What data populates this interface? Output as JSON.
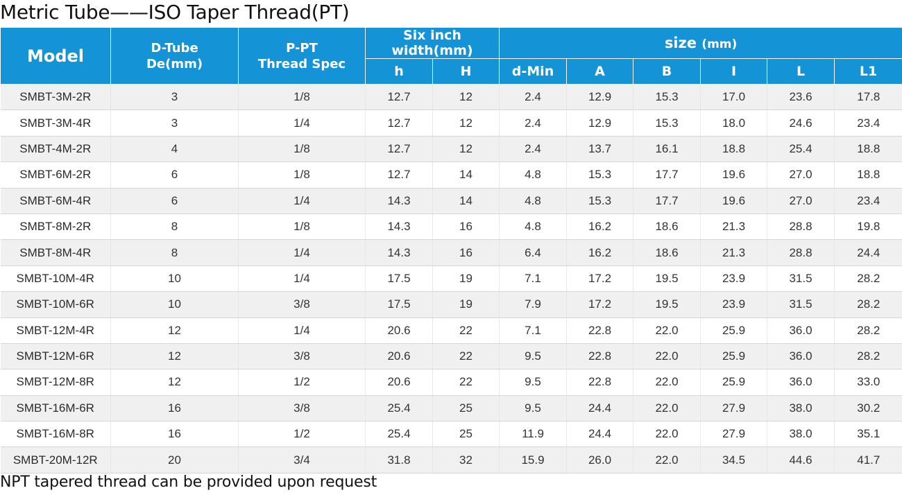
{
  "title": "Metric Tube——ISO Taper Thread(PT)",
  "footnote": "NPT tapered thread can be provided upon request",
  "colors": {
    "header_bg": "#1494d6",
    "header_text": "#ffffff",
    "row_stripe": "#f0f0f0"
  },
  "table": {
    "headers": {
      "model": "Model",
      "dtube_line1": "D-Tube",
      "dtube_line2": "De(mm)",
      "ppt_line1": "P-PT",
      "ppt_line2": "Thread Spec",
      "six_inch": "Six inch width(mm)",
      "size": "size",
      "size_unit": "(mm)",
      "sub": [
        "h",
        "H",
        "d-Min",
        "A",
        "B",
        "I",
        "L",
        "L1"
      ]
    },
    "rows": [
      [
        "SMBT-3M-2R",
        "3",
        "1/8",
        "12.7",
        "12",
        "2.4",
        "12.9",
        "15.3",
        "17.0",
        "23.6",
        "17.8"
      ],
      [
        "SMBT-3M-4R",
        "3",
        "1/4",
        "12.7",
        "12",
        "2.4",
        "12.9",
        "15.3",
        "18.0",
        "24.6",
        "23.4"
      ],
      [
        "SMBT-4M-2R",
        "4",
        "1/8",
        "12.7",
        "12",
        "2.4",
        "13.7",
        "16.1",
        "18.8",
        "25.4",
        "18.8"
      ],
      [
        "SMBT-6M-2R",
        "6",
        "1/8",
        "12.7",
        "14",
        "4.8",
        "15.3",
        "17.7",
        "19.6",
        "27.0",
        "18.8"
      ],
      [
        "SMBT-6M-4R",
        "6",
        "1/4",
        "14.3",
        "14",
        "4.8",
        "15.3",
        "17.7",
        "19.6",
        "27.0",
        "23.4"
      ],
      [
        "SMBT-8M-2R",
        "8",
        "1/8",
        "14.3",
        "16",
        "4.8",
        "16.2",
        "18.6",
        "21.3",
        "28.8",
        "19.8"
      ],
      [
        "SMBT-8M-4R",
        "8",
        "1/4",
        "14.3",
        "16",
        "6.4",
        "16.2",
        "18.6",
        "21.3",
        "28.8",
        "24.4"
      ],
      [
        "SMBT-10M-4R",
        "10",
        "1/4",
        "17.5",
        "19",
        "7.1",
        "17.2",
        "19.5",
        "23.9",
        "31.5",
        "28.2"
      ],
      [
        "SMBT-10M-6R",
        "10",
        "3/8",
        "17.5",
        "19",
        "7.9",
        "17.2",
        "19.5",
        "23.9",
        "31.5",
        "28.2"
      ],
      [
        "SMBT-12M-4R",
        "12",
        "1/4",
        "20.6",
        "22",
        "7.1",
        "22.8",
        "22.0",
        "25.9",
        "36.0",
        "28.2"
      ],
      [
        "SMBT-12M-6R",
        "12",
        "3/8",
        "20.6",
        "22",
        "9.5",
        "22.8",
        "22.0",
        "25.9",
        "36.0",
        "28.2"
      ],
      [
        "SMBT-12M-8R",
        "12",
        "1/2",
        "20.6",
        "22",
        "9.5",
        "22.8",
        "22.0",
        "25.9",
        "36.0",
        "33.0"
      ],
      [
        "SMBT-16M-6R",
        "16",
        "3/8",
        "25.4",
        "25",
        "9.5",
        "24.4",
        "22.0",
        "27.9",
        "38.0",
        "30.2"
      ],
      [
        "SMBT-16M-8R",
        "16",
        "1/2",
        "25.4",
        "25",
        "11.9",
        "24.4",
        "22.0",
        "27.9",
        "38.0",
        "35.1"
      ],
      [
        "SMBT-20M-12R",
        "20",
        "3/4",
        "31.8",
        "32",
        "15.9",
        "26.0",
        "22.0",
        "34.5",
        "44.6",
        "41.7"
      ]
    ]
  }
}
